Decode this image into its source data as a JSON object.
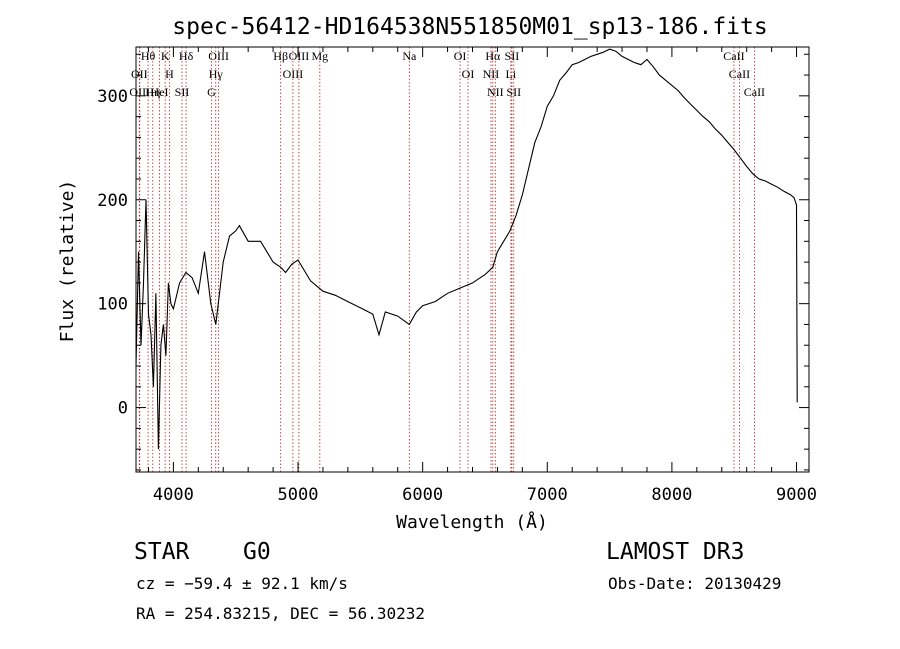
{
  "chart_data": {
    "type": "line",
    "title": "spec-56412-HD164538N551850M01_sp13-186.fits",
    "xlabel": "Wavelength (Å)",
    "ylabel": "Flux (relative)",
    "xlim": [
      3700,
      9100
    ],
    "ylim": [
      -62,
      347
    ],
    "x_ticks": [
      4000,
      5000,
      6000,
      7000,
      8000,
      9000
    ],
    "y_ticks": [
      0,
      100,
      200,
      300
    ],
    "x_tick_labels": [
      "4000",
      "5000",
      "6000",
      "7000",
      "8000",
      "9000"
    ],
    "y_tick_labels": [
      "0",
      "100",
      "200",
      "300"
    ],
    "series": [
      {
        "name": "spectrum",
        "color": "#000000",
        "x": [
          3700,
          3720,
          3740,
          3760,
          3780,
          3800,
          3820,
          3840,
          3860,
          3880,
          3900,
          3920,
          3940,
          3960,
          3980,
          4000,
          4050,
          4100,
          4150,
          4200,
          4250,
          4300,
          4340,
          4400,
          4450,
          4500,
          4530,
          4600,
          4700,
          4800,
          4861,
          4900,
          4950,
          5000,
          5100,
          5200,
          5300,
          5400,
          5500,
          5600,
          5650,
          5700,
          5800,
          5893,
          5950,
          6000,
          6100,
          6200,
          6300,
          6400,
          6500,
          6563,
          6600,
          6650,
          6700,
          6750,
          6800,
          6850,
          6900,
          6950,
          7000,
          7050,
          7100,
          7150,
          7200,
          7250,
          7300,
          7350,
          7400,
          7450,
          7500,
          7550,
          7600,
          7650,
          7700,
          7750,
          7800,
          7850,
          7900,
          7950,
          8000,
          8050,
          8100,
          8150,
          8200,
          8250,
          8300,
          8350,
          8400,
          8450,
          8500,
          8550,
          8600,
          8650,
          8700,
          8750,
          8800,
          8850,
          8900,
          8950,
          8980,
          9000,
          9005
        ],
        "y": [
          40,
          150,
          60,
          120,
          200,
          90,
          70,
          20,
          110,
          -40,
          60,
          80,
          50,
          120,
          100,
          95,
          120,
          130,
          125,
          110,
          150,
          100,
          80,
          140,
          165,
          170,
          175,
          160,
          160,
          140,
          135,
          130,
          138,
          142,
          122,
          112,
          108,
          102,
          96,
          90,
          70,
          92,
          88,
          80,
          92,
          98,
          102,
          110,
          115,
          120,
          128,
          135,
          150,
          160,
          170,
          185,
          205,
          230,
          255,
          270,
          290,
          300,
          315,
          322,
          330,
          332,
          335,
          338,
          340,
          342,
          345,
          343,
          338,
          335,
          332,
          330,
          335,
          328,
          320,
          315,
          310,
          305,
          298,
          292,
          286,
          280,
          275,
          268,
          262,
          255,
          248,
          240,
          232,
          225,
          220,
          218,
          215,
          212,
          208,
          205,
          202,
          195,
          5
        ]
      }
    ],
    "lines": [
      {
        "label": "Hθ",
        "x": 3797
      },
      {
        "label": "OII",
        "x": 3727
      },
      {
        "label": "OIII",
        "x": 3730
      },
      {
        "label": "K",
        "x": 3934
      },
      {
        "label": "H",
        "x": 3968
      },
      {
        "label": "HeI",
        "x": 3889
      },
      {
        "label": "Hη",
        "x": 3835
      },
      {
        "label": "SII",
        "x": 4069
      },
      {
        "label": "Hδ",
        "x": 4102
      },
      {
        "label": "OIII",
        "x": 4363
      },
      {
        "label": "Hγ",
        "x": 4340
      },
      {
        "label": "G",
        "x": 4305
      },
      {
        "label": "OIII",
        "x": 5007
      },
      {
        "label": "OIII",
        "x": 4959
      },
      {
        "label": "Hβ",
        "x": 4861
      },
      {
        "label": "Mg",
        "x": 5175
      },
      {
        "label": "Na",
        "x": 5893
      },
      {
        "label": "OI",
        "x": 6300
      },
      {
        "label": "OI",
        "x": 6364
      },
      {
        "label": "Hα",
        "x": 6563
      },
      {
        "label": "NII",
        "x": 6548
      },
      {
        "label": "NII",
        "x": 6583
      },
      {
        "label": "SII",
        "x": 6716
      },
      {
        "label": "Li",
        "x": 6708
      },
      {
        "label": "SII",
        "x": 6731
      },
      {
        "label": "CaII",
        "x": 8498
      },
      {
        "label": "CaII",
        "x": 8542
      },
      {
        "label": "CaII",
        "x": 8662
      }
    ]
  },
  "info": {
    "object_type": "STAR",
    "subclass": "G0",
    "survey": "LAMOST DR3",
    "redshift": "cz = −59.4 ± 92.1 km/s",
    "obs_date": "Obs-Date: 20130429",
    "coords": "RA = 254.83215, DEC =  56.30232"
  }
}
